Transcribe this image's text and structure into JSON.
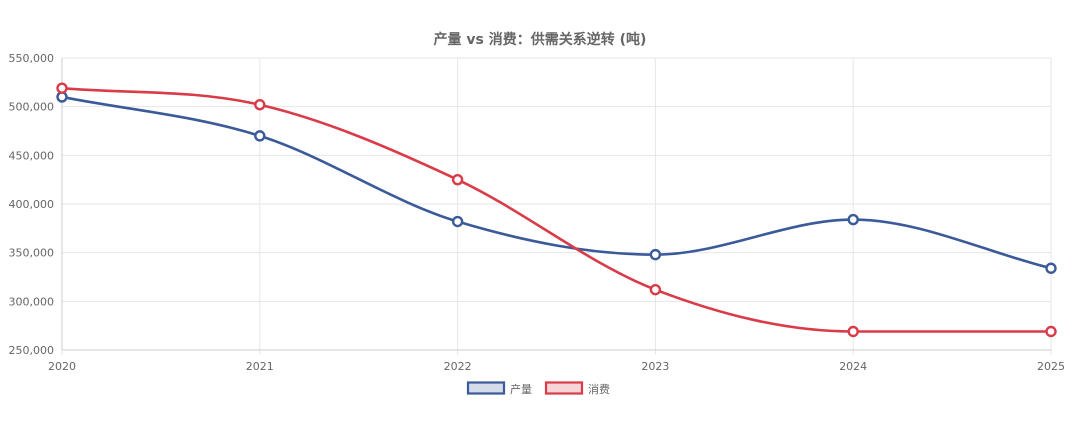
{
  "chart_data": {
    "type": "line",
    "title": "产量 vs 消费：供需关系逆转 (吨)",
    "categories": [
      "2020",
      "2021",
      "2022",
      "2023",
      "2024",
      "2025"
    ],
    "series": [
      {
        "name": "产量",
        "values": [
          510000,
          470000,
          382000,
          348000,
          384000,
          334000
        ],
        "color": "#3a5a9a"
      },
      {
        "name": "消费",
        "values": [
          519000,
          502000,
          425000,
          312000,
          269000,
          269000
        ],
        "color": "#d93b48"
      }
    ],
    "ylim": [
      250000,
      550000
    ],
    "yticks": [
      "550,000",
      "500,000",
      "450,000",
      "400,000",
      "350,000",
      "300,000",
      "250,000"
    ],
    "grid": true,
    "legend_position": "bottom"
  }
}
